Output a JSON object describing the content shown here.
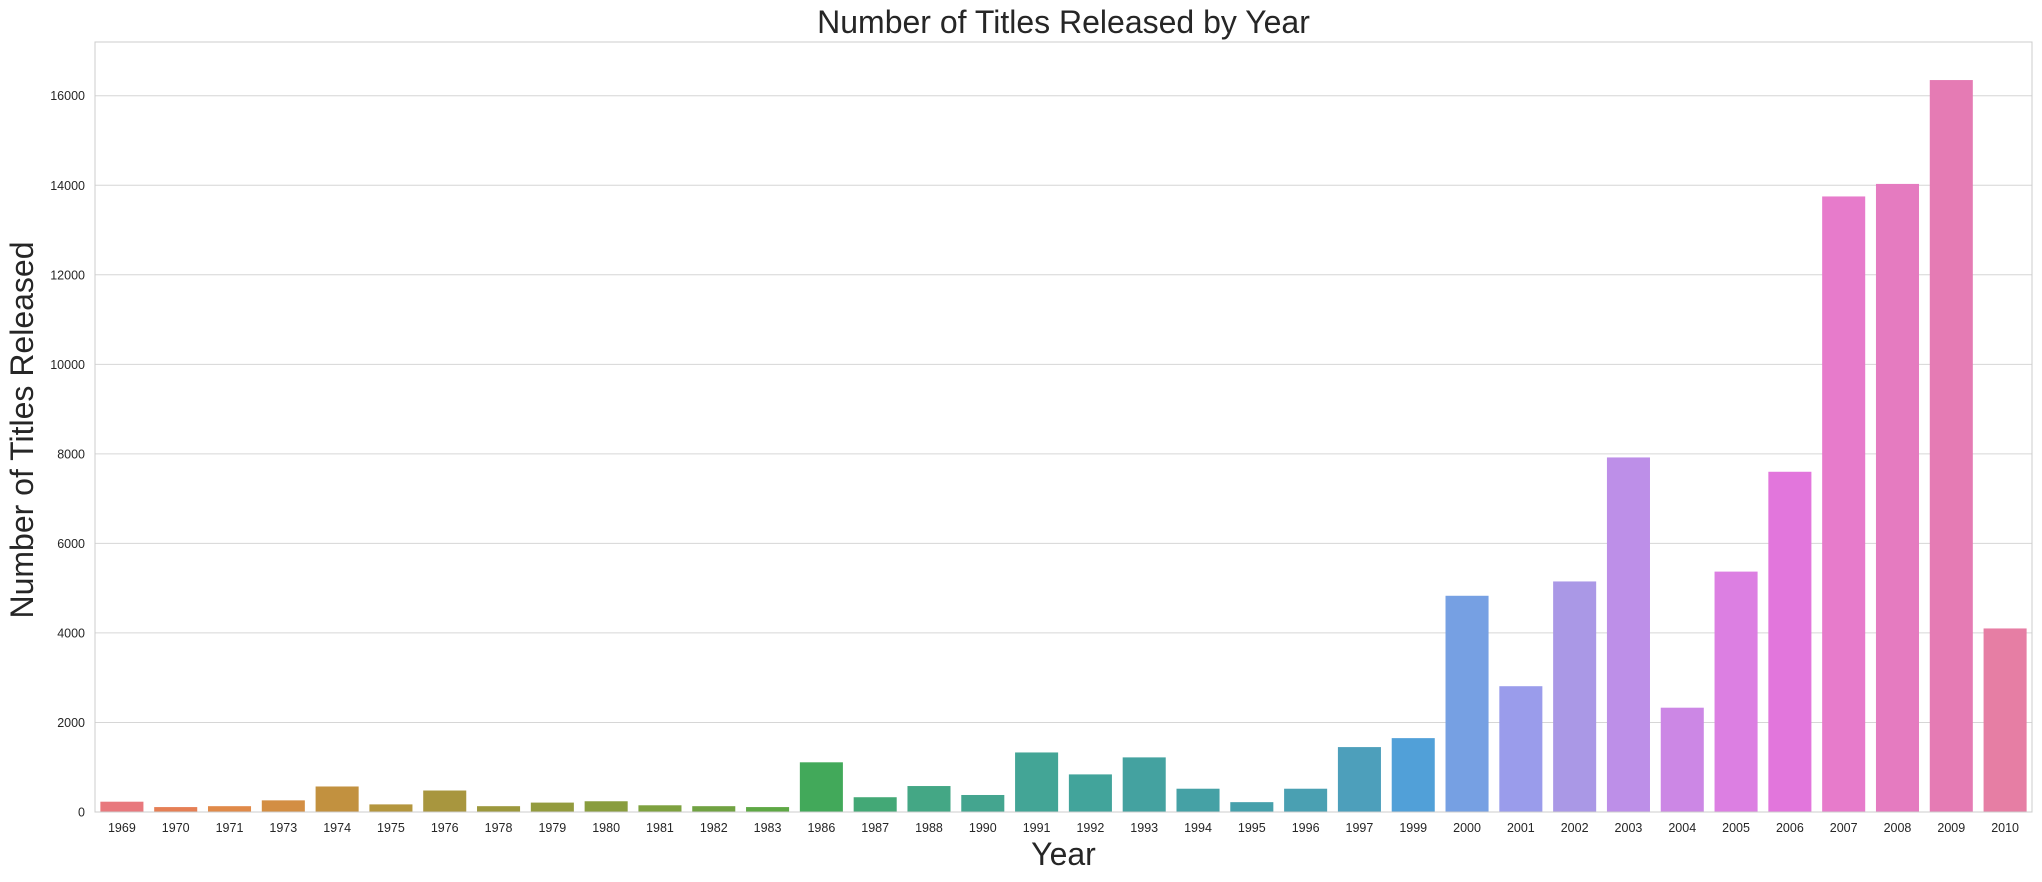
{
  "chart_data": {
    "type": "bar",
    "title": "Number of Titles Released by Year",
    "xlabel": "Year",
    "ylabel": "Number of Titles Released",
    "ylim": [
      0,
      17200
    ],
    "yticks": [
      0,
      2000,
      4000,
      6000,
      8000,
      10000,
      12000,
      14000,
      16000
    ],
    "grid": true,
    "categories": [
      "1969",
      "1970",
      "1971",
      "1973",
      "1974",
      "1975",
      "1976",
      "1978",
      "1979",
      "1980",
      "1981",
      "1982",
      "1983",
      "1986",
      "1987",
      "1988",
      "1990",
      "1991",
      "1992",
      "1993",
      "1994",
      "1995",
      "1996",
      "1997",
      "1999",
      "2000",
      "2001",
      "2002",
      "2003",
      "2004",
      "2005",
      "2006",
      "2007",
      "2008",
      "2009",
      "2010"
    ],
    "values": [
      230,
      110,
      130,
      260,
      570,
      170,
      480,
      130,
      210,
      240,
      150,
      130,
      110,
      1110,
      330,
      580,
      380,
      1330,
      840,
      1220,
      520,
      220,
      520,
      1450,
      1650,
      4830,
      2810,
      5150,
      7920,
      2330,
      5370,
      7600,
      13750,
      14030,
      16350,
      4100
    ],
    "colors": [
      "#e8787d",
      "#e57f55",
      "#e08a49",
      "#d38e43",
      "#c2913f",
      "#b4963e",
      "#a8963e",
      "#9c983d",
      "#939b3e",
      "#899d3e",
      "#7ea13f",
      "#71a242",
      "#5ea845",
      "#42a95a",
      "#43a876",
      "#44a785",
      "#44a58f",
      "#43a596",
      "#42a49b",
      "#44a2a0",
      "#45a1a5",
      "#46a0ab",
      "#4aa0b2",
      "#4d9fbb",
      "#51a0d8",
      "#76a0e3",
      "#9a9ceb",
      "#aa98e6",
      "#bd8fe8",
      "#cc87e5",
      "#dc7fe2",
      "#e276dc",
      "#e77bcb",
      "#e57bc0",
      "#e57bb4",
      "#e67ea4"
    ]
  }
}
